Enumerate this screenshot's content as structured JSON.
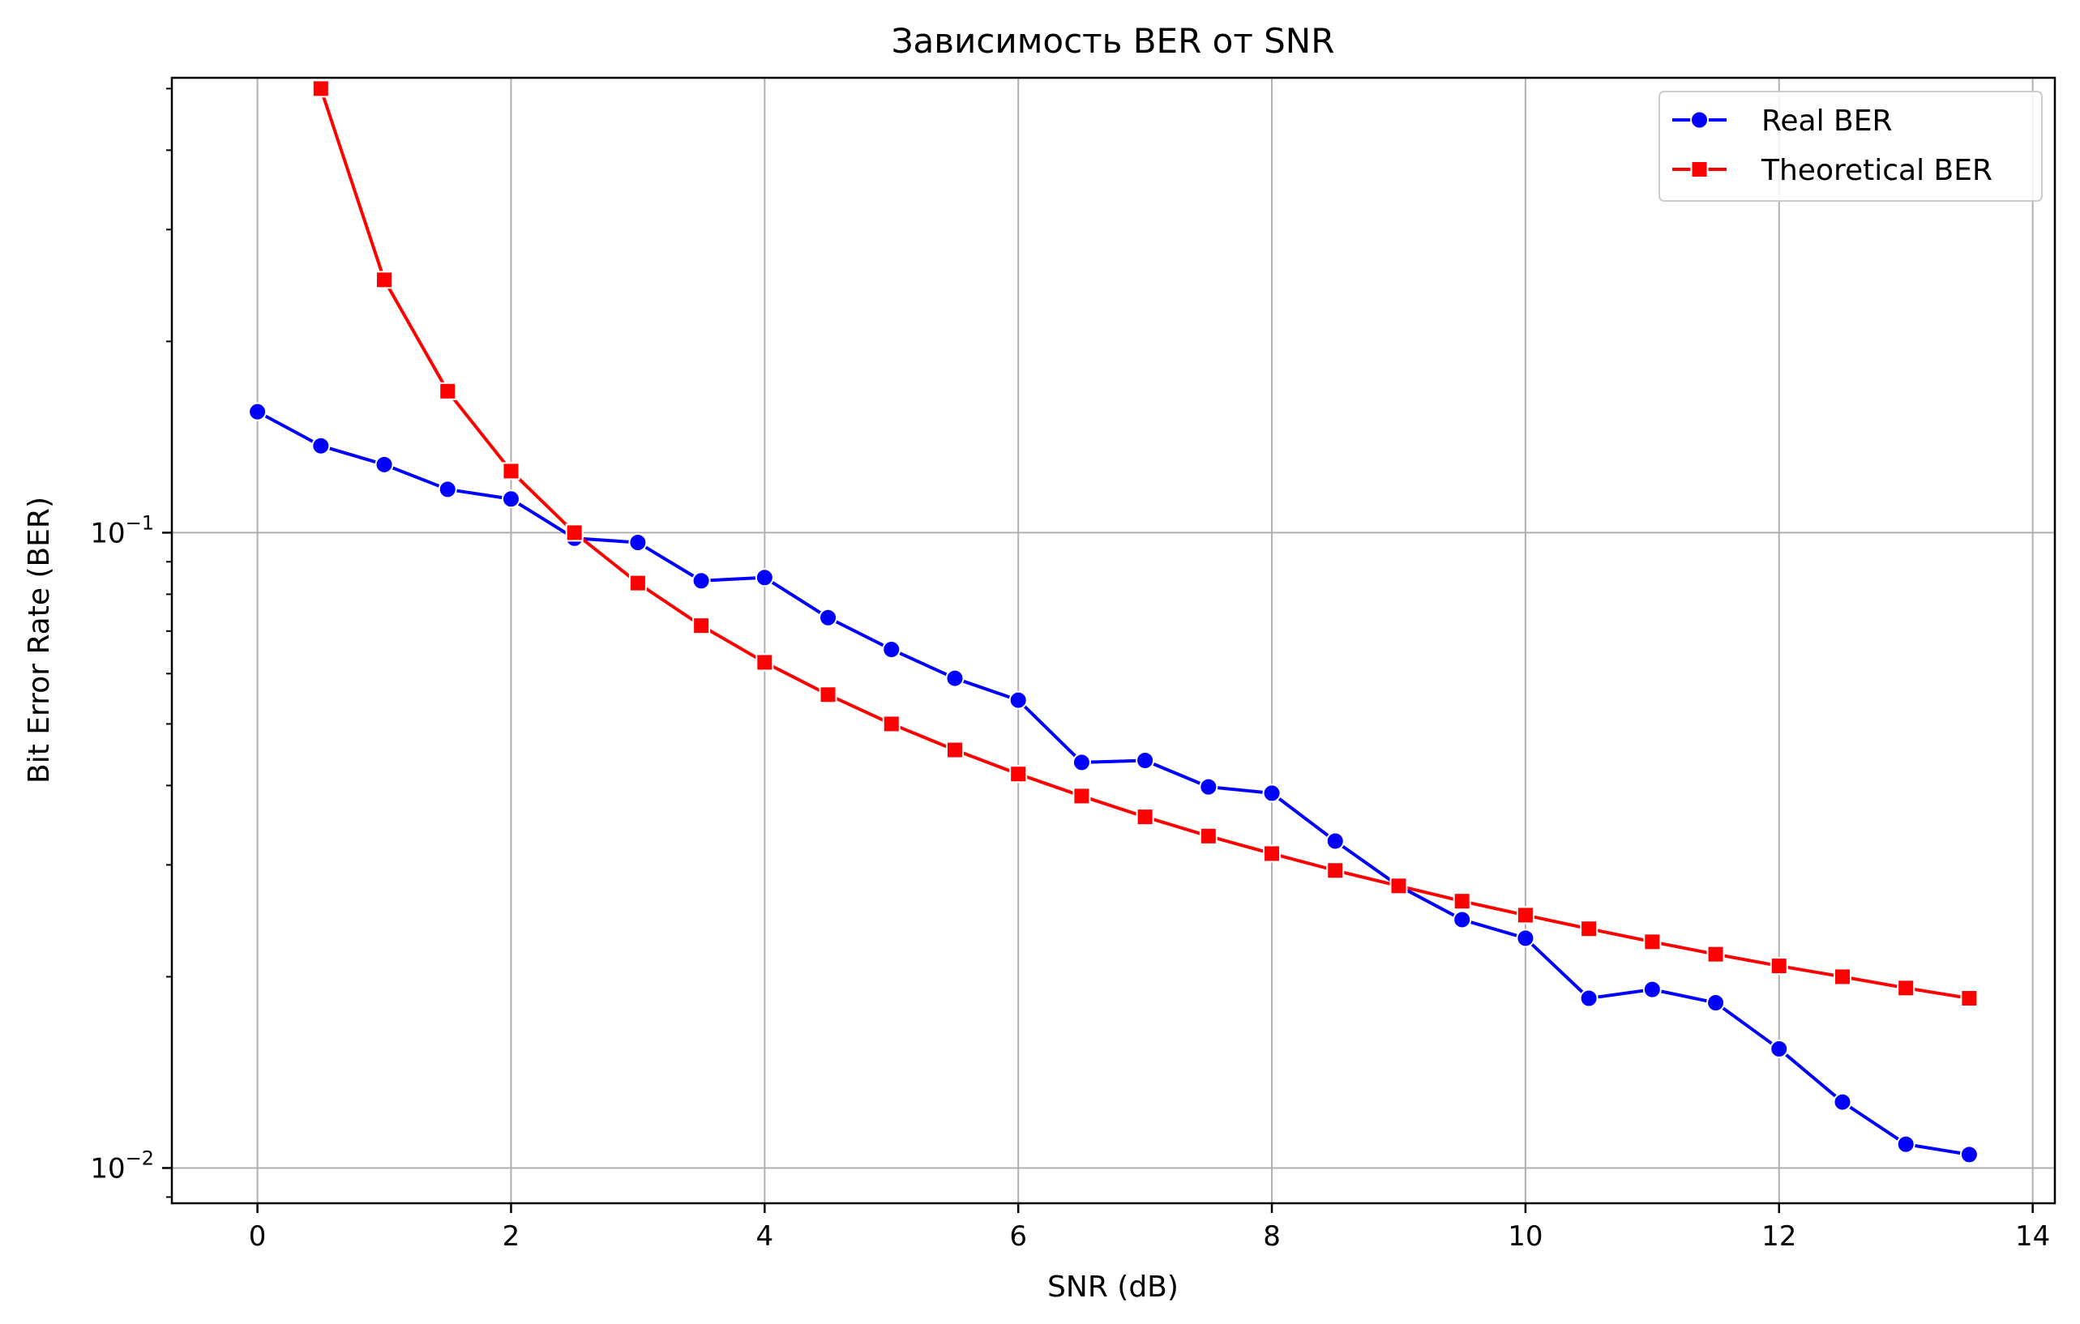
{
  "chart_data": {
    "type": "line",
    "title": "Зависимость BER от SNR",
    "xlabel": "SNR (dB)",
    "ylabel": "Bit Error Rate (BER)",
    "xlim": [
      -0.675,
      14.175
    ],
    "ylim": [
      0.0088,
      0.52
    ],
    "yscale": "log",
    "grid": true,
    "legend_position": "top-right",
    "x_ticks": [
      0,
      2,
      4,
      6,
      8,
      10,
      12,
      14
    ],
    "x_tick_labels": [
      "0",
      "2",
      "4",
      "6",
      "8",
      "10",
      "12",
      "14"
    ],
    "y_ticks": [
      0.1,
      0.01
    ],
    "y_tick_labels": [
      {
        "base": "10",
        "exp": "−1"
      },
      {
        "base": "10",
        "exp": "−2"
      }
    ],
    "series": [
      {
        "name": "Real BER",
        "color": "#0000ff",
        "marker": "circle",
        "x": [
          0,
          0.5,
          1,
          1.5,
          2,
          2.5,
          3,
          3.5,
          4,
          4.5,
          5,
          5.5,
          6,
          6.5,
          7,
          7.5,
          8,
          8.5,
          9,
          9.5,
          10,
          10.5,
          11,
          11.5,
          12,
          12.5,
          13,
          13.5
        ],
        "y": [
          0.155,
          0.137,
          0.128,
          0.117,
          0.113,
          0.098,
          0.0965,
          0.084,
          0.085,
          0.0735,
          0.0655,
          0.059,
          0.0545,
          0.0435,
          0.0438,
          0.0398,
          0.0389,
          0.0327,
          0.0278,
          0.0246,
          0.023,
          0.0185,
          0.0191,
          0.0182,
          0.0154,
          0.0127,
          0.0109,
          0.0105
        ]
      },
      {
        "name": "Theoretical BER",
        "color": "#ff0000",
        "marker": "square",
        "x": [
          0.5,
          1,
          1.5,
          2,
          2.5,
          3,
          3.5,
          4,
          4.5,
          5,
          5.5,
          6,
          6.5,
          7,
          7.5,
          8,
          8.5,
          9,
          9.5,
          10,
          10.5,
          11,
          11.5,
          12,
          12.5,
          13,
          13.5
        ],
        "y": [
          0.5,
          0.25,
          0.167,
          0.125,
          0.1,
          0.0833,
          0.0714,
          0.0625,
          0.0556,
          0.05,
          0.0455,
          0.0417,
          0.0385,
          0.0357,
          0.0333,
          0.03125,
          0.0294,
          0.0278,
          0.0263,
          0.025,
          0.0238,
          0.0227,
          0.0217,
          0.0208,
          0.02,
          0.0192,
          0.0185
        ]
      }
    ]
  }
}
